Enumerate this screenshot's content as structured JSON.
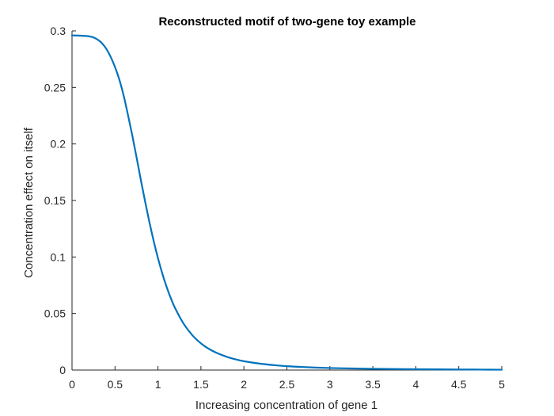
{
  "chart_data": {
    "type": "line",
    "title": "Reconstructed motif of two-gene toy example",
    "xlabel": "Increasing concentration of gene 1",
    "ylabel": "Concentration effect on itself",
    "xlim": [
      0,
      5
    ],
    "ylim": [
      0,
      0.3
    ],
    "xticks": [
      "0",
      "0.5",
      "1",
      "1.5",
      "2",
      "2.5",
      "3",
      "3.5",
      "4",
      "4.5",
      "5"
    ],
    "yticks": [
      "0",
      "0.05",
      "0.1",
      "0.15",
      "0.2",
      "0.25",
      "0.3"
    ],
    "grid": false,
    "legend": "none",
    "line_color": "#0072BD",
    "axis_color": "#262626",
    "series": [
      {
        "x": [
          0,
          0.1,
          0.2,
          0.25,
          0.3,
          0.35,
          0.4,
          0.45,
          0.5,
          0.55,
          0.6,
          0.65,
          0.7,
          0.75,
          0.8,
          0.85,
          0.9,
          0.95,
          1.0,
          1.05,
          1.1,
          1.15,
          1.2,
          1.3,
          1.4,
          1.5,
          1.6,
          1.7,
          1.8,
          1.9,
          2.0,
          2.2,
          2.4,
          2.6,
          2.8,
          3.0,
          3.25,
          3.5,
          3.75,
          4.0,
          4.25,
          4.5,
          4.75,
          5.0
        ],
        "values": [
          0.296,
          0.2958,
          0.2952,
          0.2942,
          0.2922,
          0.289,
          0.284,
          0.277,
          0.268,
          0.257,
          0.243,
          0.226,
          0.208,
          0.1885,
          0.1685,
          0.1492,
          0.131,
          0.1142,
          0.099,
          0.0855,
          0.0737,
          0.0635,
          0.0547,
          0.0408,
          0.0308,
          0.0236,
          0.0184,
          0.0146,
          0.0117,
          0.0095,
          0.0078,
          0.0055,
          0.004,
          0.003,
          0.0023,
          0.0018,
          0.0014,
          0.0011,
          0.0009,
          0.0007,
          0.0006,
          0.0005,
          0.0004,
          0.0003
        ]
      }
    ]
  }
}
